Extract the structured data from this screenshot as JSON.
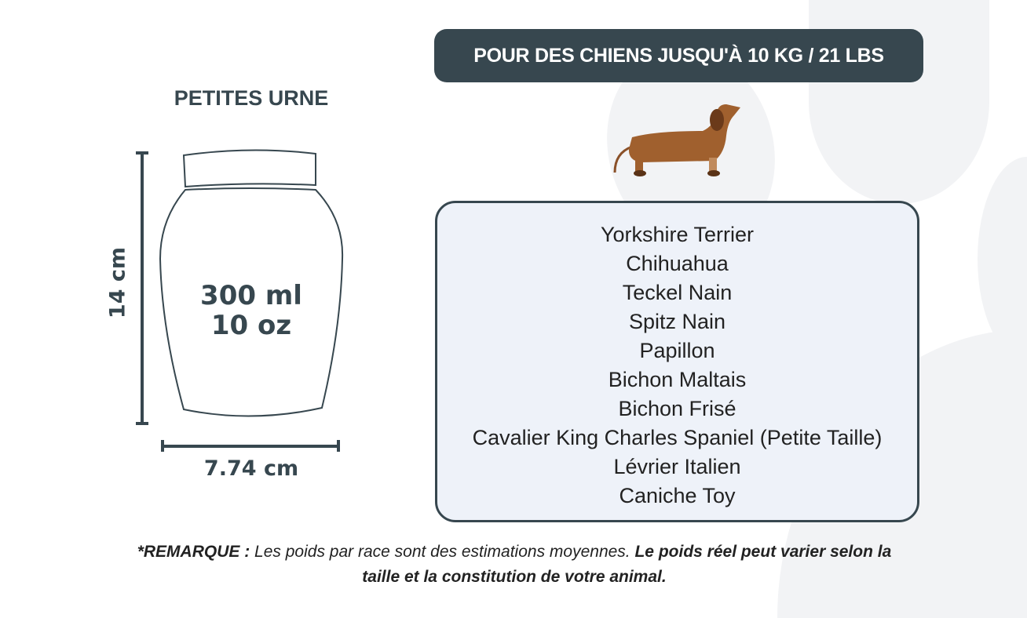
{
  "banner": "POUR DES CHIENS JUSQU'À 10 KG / 21 LBS",
  "product_title": "PETITES URNE",
  "urn": {
    "volume_ml": "300 ml",
    "volume_oz": "10 oz",
    "height": "14 cm",
    "width": "7.74 cm"
  },
  "breeds": [
    "Yorkshire Terrier",
    "Chihuahua",
    "Teckel Nain",
    "Spitz Nain",
    "Papillon",
    "Bichon Maltais",
    "Bichon Frisé",
    "Cavalier King Charles Spaniel (Petite Taille)",
    "Lévrier Italien",
    "Caniche Toy"
  ],
  "note": {
    "label": "*REMARQUE :",
    "text": " Les poids par race sont des estimations moyennes. ",
    "emphasis": "Le poids réel peut varier selon la taille et la constitution de votre animal."
  },
  "colors": {
    "primary": "#37474f",
    "box_bg": "#eef2f9",
    "dog": "#a0602e"
  }
}
